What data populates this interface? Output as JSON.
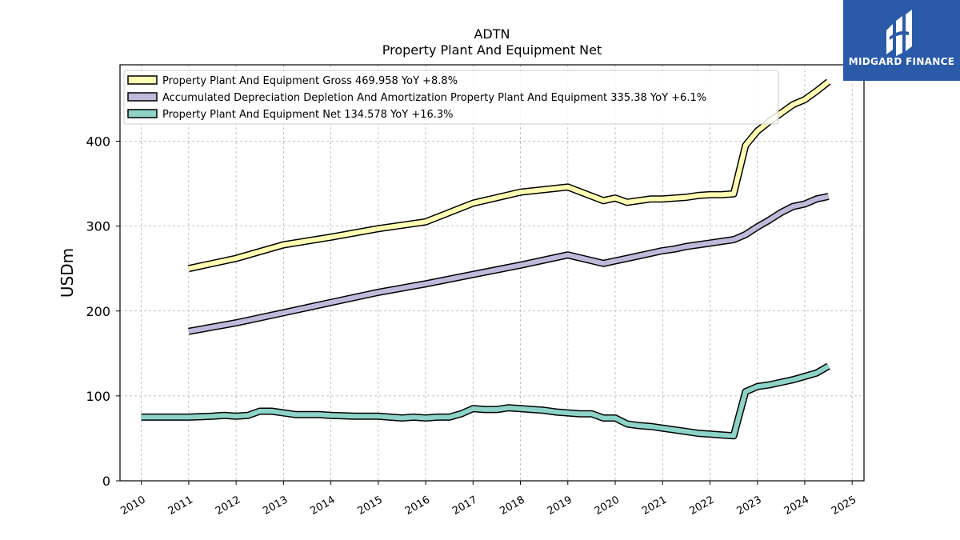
{
  "chart_data": {
    "type": "line",
    "title": "ADTN",
    "subtitle": "Property Plant And Equipment Net",
    "ylabel": "USDm",
    "xlabel": "",
    "xlim": [
      2009.55,
      2025.25
    ],
    "ylim": [
      0,
      490
    ],
    "yticks": [
      0,
      100,
      200,
      300,
      400
    ],
    "xticks": [
      2010,
      2011,
      2012,
      2013,
      2014,
      2015,
      2016,
      2017,
      2018,
      2019,
      2020,
      2021,
      2022,
      2023,
      2024,
      2025
    ],
    "grid": true,
    "legend_position": "top-left",
    "series": [
      {
        "name": "Property Plant And Equipment Gross",
        "legend": "Property Plant And Equipment Gross  469.958 YoY +8.8%",
        "color": "#ffffb3",
        "x": [
          2011.0,
          2012.0,
          2013.0,
          2014.0,
          2015.0,
          2016.0,
          2017.0,
          2018.0,
          2019.0,
          2019.75,
          2020.0,
          2020.25,
          2020.5,
          2020.75,
          2021.0,
          2021.25,
          2021.5,
          2021.75,
          2022.0,
          2022.25,
          2022.5,
          2022.75,
          2023.0,
          2023.25,
          2023.5,
          2023.75,
          2024.0,
          2024.25,
          2024.5
        ],
        "y": [
          250,
          262,
          278,
          287,
          297,
          305,
          327,
          340,
          346,
          330,
          333,
          328,
          330,
          332,
          332,
          333,
          334,
          336,
          337,
          337,
          338,
          395,
          412,
          423,
          433,
          443,
          449,
          459,
          470
        ]
      },
      {
        "name": "Accumulated Depreciation Depletion And Amortization Property Plant And Equipment",
        "legend": "Accumulated Depreciation Depletion And Amortization Property Plant And Equipment  335.38 YoY +6.1%",
        "color": "#bebada",
        "x": [
          2011.0,
          2012.0,
          2013.0,
          2014.0,
          2015.0,
          2016.0,
          2017.0,
          2018.0,
          2019.0,
          2019.75,
          2020.0,
          2020.25,
          2020.5,
          2020.75,
          2021.0,
          2021.25,
          2021.5,
          2021.75,
          2022.0,
          2022.25,
          2022.5,
          2022.75,
          2023.0,
          2023.25,
          2023.5,
          2023.75,
          2024.0,
          2024.25,
          2024.5
        ],
        "y": [
          176,
          186,
          198,
          210,
          222,
          232,
          243,
          254,
          266,
          256,
          259,
          262,
          265,
          268,
          271,
          273,
          276,
          278,
          280,
          282,
          284,
          290,
          299,
          307,
          316,
          323,
          326,
          332,
          335
        ]
      },
      {
        "name": "Property Plant And Equipment Net",
        "legend": "Property Plant And Equipment Net  134.578 YoY +16.3%",
        "color": "#8dd3c7",
        "x": [
          2010.0,
          2010.5,
          2011.0,
          2011.5,
          2011.75,
          2012.0,
          2012.25,
          2012.5,
          2012.75,
          2013.0,
          2013.25,
          2013.5,
          2013.75,
          2014.0,
          2014.5,
          2015.0,
          2015.25,
          2015.5,
          2015.75,
          2016.0,
          2016.25,
          2016.5,
          2016.75,
          2017.0,
          2017.25,
          2017.5,
          2017.75,
          2018.0,
          2018.25,
          2018.5,
          2018.75,
          2019.0,
          2019.25,
          2019.5,
          2019.75,
          2020.0,
          2020.25,
          2020.5,
          2020.75,
          2021.0,
          2021.25,
          2021.5,
          2021.75,
          2022.0,
          2022.25,
          2022.5,
          2022.75,
          2023.0,
          2023.25,
          2023.5,
          2023.75,
          2024.0,
          2024.25,
          2024.5
        ],
        "y": [
          75,
          75,
          75,
          76,
          77,
          76,
          77,
          82,
          82,
          80,
          78,
          78,
          78,
          77,
          76,
          76,
          75,
          74,
          75,
          74,
          75,
          75,
          79,
          85,
          84,
          84,
          86,
          85,
          84,
          83,
          81,
          80,
          79,
          79,
          74,
          74,
          67,
          65,
          64,
          62,
          60,
          58,
          56,
          55,
          54,
          53,
          105,
          111,
          113,
          116,
          119,
          123,
          127,
          135
        ]
      }
    ]
  },
  "logo": {
    "text": "MIDGARD FINANCE"
  }
}
